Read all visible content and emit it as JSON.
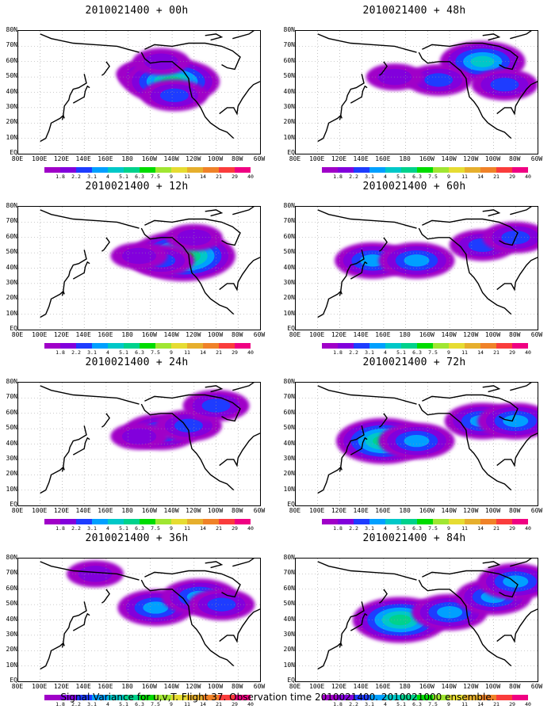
{
  "footer_text": "Signal Variance for u,v,T. Flight 37. Observation time 2010021400. 2010021000 ensemble.",
  "y_ticks": [
    "80N",
    "70N",
    "60N",
    "50N",
    "40N",
    "30N",
    "20N",
    "10N",
    "EQ"
  ],
  "x_ticks": [
    "80E",
    "100E",
    "120E",
    "140E",
    "160E",
    "180",
    "160W",
    "140W",
    "120W",
    "100W",
    "80W",
    "60W"
  ],
  "colorbar": {
    "labels": [
      "1.8",
      "2.2",
      "3.1",
      "4",
      "5.1",
      "6.3",
      "7.5",
      "9",
      "11",
      "14",
      "21",
      "29",
      "40"
    ],
    "colors": [
      "#a000c8",
      "#8200dc",
      "#1e3cff",
      "#00a0ff",
      "#00c8c8",
      "#00d28c",
      "#00dc00",
      "#a0e632",
      "#e6dc32",
      "#e6af2d",
      "#f08228",
      "#fa3c3c",
      "#f00082"
    ]
  },
  "chart_data": [
    {
      "type": "heatmap",
      "title": "2010021400 + 00h",
      "forecast_hour": 0,
      "lon_range": [
        "80E",
        "60W"
      ],
      "lat_range": [
        "EQ",
        "80N"
      ],
      "regions": [
        {
          "lon": -165,
          "lat": 52,
          "level": 1
        },
        {
          "lon": -150,
          "lat": 50,
          "level": 4
        },
        {
          "lon": -140,
          "lat": 47,
          "level": 5
        },
        {
          "lon": -138,
          "lat": 38,
          "level": 2
        },
        {
          "lon": -150,
          "lat": 60,
          "level": 1
        }
      ]
    },
    {
      "type": "heatmap",
      "title": "2010021400 + 12h",
      "forecast_hour": 12,
      "lon_range": [
        "80E",
        "60W"
      ],
      "lat_range": [
        "EQ",
        "80N"
      ],
      "regions": [
        {
          "lon": -130,
          "lat": 48,
          "level": 6
        },
        {
          "lon": -150,
          "lat": 45,
          "level": 2
        },
        {
          "lon": -170,
          "lat": 48,
          "level": 1
        },
        {
          "lon": -120,
          "lat": 60,
          "level": 1
        }
      ]
    },
    {
      "type": "heatmap",
      "title": "2010021400 + 24h",
      "forecast_hour": 24,
      "lon_range": [
        "80E",
        "60W"
      ],
      "lat_range": [
        "EQ",
        "80N"
      ],
      "regions": [
        {
          "lon": -150,
          "lat": 48,
          "level": 3
        },
        {
          "lon": -125,
          "lat": 52,
          "level": 2
        },
        {
          "lon": -100,
          "lat": 65,
          "level": 2
        },
        {
          "lon": -170,
          "lat": 45,
          "level": 1
        }
      ]
    },
    {
      "type": "heatmap",
      "title": "2010021400 + 36h",
      "forecast_hour": 36,
      "lon_range": [
        "80E",
        "60W"
      ],
      "lat_range": [
        "EQ",
        "80N"
      ],
      "regions": [
        {
          "lon": -155,
          "lat": 48,
          "level": 3
        },
        {
          "lon": -115,
          "lat": 55,
          "level": 3
        },
        {
          "lon": -95,
          "lat": 50,
          "level": 2
        },
        {
          "lon": 150,
          "lat": 70,
          "level": 1
        }
      ]
    },
    {
      "type": "heatmap",
      "title": "2010021400 + 48h",
      "forecast_hour": 48,
      "lon_range": [
        "80E",
        "60W"
      ],
      "lat_range": [
        "EQ",
        "80N"
      ],
      "regions": [
        {
          "lon": -110,
          "lat": 60,
          "level": 4
        },
        {
          "lon": -150,
          "lat": 48,
          "level": 2
        },
        {
          "lon": -90,
          "lat": 45,
          "level": 2
        },
        {
          "lon": 170,
          "lat": 50,
          "level": 1
        }
      ]
    },
    {
      "type": "heatmap",
      "title": "2010021400 + 60h",
      "forecast_hour": 60,
      "lon_range": [
        "80E",
        "60W"
      ],
      "lat_range": [
        "EQ",
        "80N"
      ],
      "regions": [
        {
          "lon": 150,
          "lat": 45,
          "level": 3
        },
        {
          "lon": -170,
          "lat": 45,
          "level": 3
        },
        {
          "lon": -110,
          "lat": 55,
          "level": 2
        },
        {
          "lon": -80,
          "lat": 60,
          "level": 2
        }
      ]
    },
    {
      "type": "heatmap",
      "title": "2010021400 + 72h",
      "forecast_hour": 72,
      "lon_range": [
        "80E",
        "60W"
      ],
      "lat_range": [
        "EQ",
        "80N"
      ],
      "regions": [
        {
          "lon": 160,
          "lat": 42,
          "level": 5
        },
        {
          "lon": -170,
          "lat": 42,
          "level": 3
        },
        {
          "lon": -110,
          "lat": 55,
          "level": 3
        },
        {
          "lon": -80,
          "lat": 55,
          "level": 3
        }
      ]
    },
    {
      "type": "heatmap",
      "title": "2010021400 + 84h",
      "forecast_hour": 84,
      "lon_range": [
        "80E",
        "60W"
      ],
      "lat_range": [
        "EQ",
        "80N"
      ],
      "regions": [
        {
          "lon": 175,
          "lat": 40,
          "level": 5
        },
        {
          "lon": -140,
          "lat": 45,
          "level": 3
        },
        {
          "lon": -100,
          "lat": 55,
          "level": 3
        },
        {
          "lon": -80,
          "lat": 65,
          "level": 3
        }
      ]
    }
  ]
}
